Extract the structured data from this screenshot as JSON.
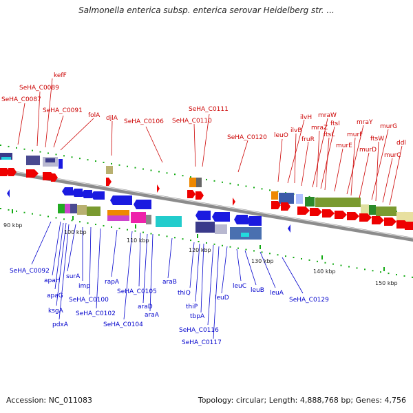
{
  "title": "Salmonella enterica subsp. enterica serovar Heidelberg str. ...",
  "accession_label": "Accession: NC_011083",
  "summary_label": "Topology: circular; Length: 4,888,768 bp; Genes: 4,756",
  "colors": {
    "forward_label": "#cc0000",
    "reverse_label": "#0000cc",
    "forward_gene": "#ee0000",
    "reverse_gene": "#1a1ae0",
    "backbone": "#8c8c8c",
    "tick_mark": "#11aa11"
  },
  "ticks": [
    "90 kbp",
    "100 kbp",
    "110 kbp",
    "120 kbp",
    "130 kbp",
    "140 kbp",
    "150 kbp"
  ],
  "forward_genes": [
    "kefF",
    "SeHA_C0089",
    "SeHA_C0087",
    "SeHA_C0091",
    "folA",
    "djlA",
    "SeHA_C0106",
    "SeHA_C0111",
    "SeHA_C0110",
    "SeHA_C0120",
    "leuO",
    "ilvH",
    "ilvB",
    "fruR",
    "mraW",
    "mraZ",
    "ftsI",
    "ftsL",
    "murE",
    "mraY",
    "murF",
    "murD",
    "murG",
    "ftsW",
    "murC",
    "ddl"
  ],
  "reverse_genes": [
    "SeHA_C0092",
    "apaH",
    "apaG",
    "ksgA",
    "pdxA",
    "surA",
    "imp",
    "SeHA_C0100",
    "SeHA_C0102",
    "rapA",
    "SeHA_C0105",
    "SeHA_C0104",
    "araD",
    "araA",
    "araB",
    "thiQ",
    "thiP",
    "tbpA",
    "SeHA_C0116",
    "SeHA_C0117",
    "leuD",
    "leuC",
    "leuB",
    "leuA",
    "SeHA_C0129"
  ]
}
